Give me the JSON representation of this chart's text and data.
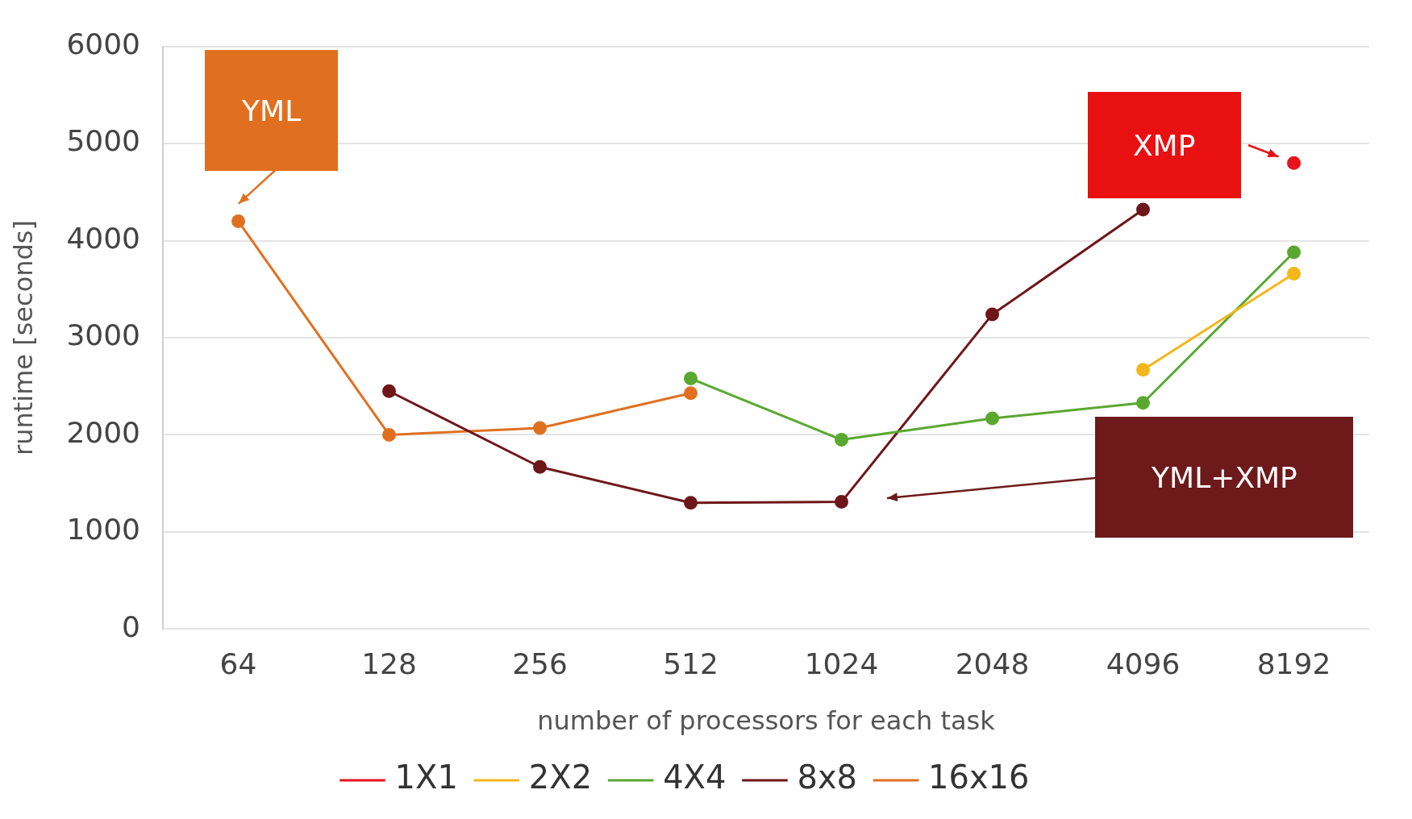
{
  "chart_data": {
    "type": "line",
    "xlabel": "number of processors for each task",
    "ylabel": "runtime [seconds]",
    "categories": [
      "64",
      "128",
      "256",
      "512",
      "1024",
      "2048",
      "4096",
      "8192"
    ],
    "series": [
      {
        "name": "1X1",
        "color": "#e8141c",
        "values": [
          null,
          null,
          null,
          null,
          null,
          null,
          null,
          4800
        ]
      },
      {
        "name": "2X2",
        "color": "#f4b61a",
        "values": [
          null,
          null,
          null,
          null,
          null,
          null,
          2670,
          3660
        ]
      },
      {
        "name": "4X4",
        "color": "#5aa830",
        "values": [
          null,
          null,
          null,
          2580,
          1950,
          2170,
          2330,
          3880
        ]
      },
      {
        "name": "8x8",
        "color": "#6e1618",
        "values": [
          null,
          2450,
          1670,
          1300,
          1310,
          3240,
          4320,
          null
        ]
      },
      {
        "name": "16x16",
        "color": "#e07020",
        "values": [
          4200,
          2000,
          2070,
          2430,
          null,
          null,
          null,
          null
        ]
      }
    ],
    "ylim": [
      0,
      6000
    ],
    "yticks": [
      0,
      1000,
      2000,
      3000,
      4000,
      5000,
      6000
    ],
    "grid": "y",
    "legend": "bottom",
    "marker": "circle",
    "line_style": "solid",
    "annotations": [
      "YML",
      "XMP",
      "YML+XMP"
    ]
  }
}
